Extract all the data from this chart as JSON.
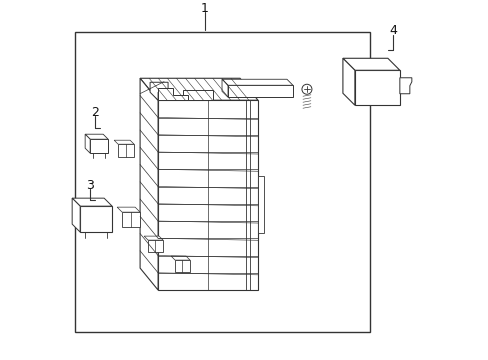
{
  "bg_color": "#ffffff",
  "line_color": "#333333",
  "label_color": "#111111",
  "fig_width": 4.89,
  "fig_height": 3.6,
  "dpi": 100,
  "part1_label": "1",
  "part2_label": "2",
  "part3_label": "3",
  "part4_label": "4"
}
